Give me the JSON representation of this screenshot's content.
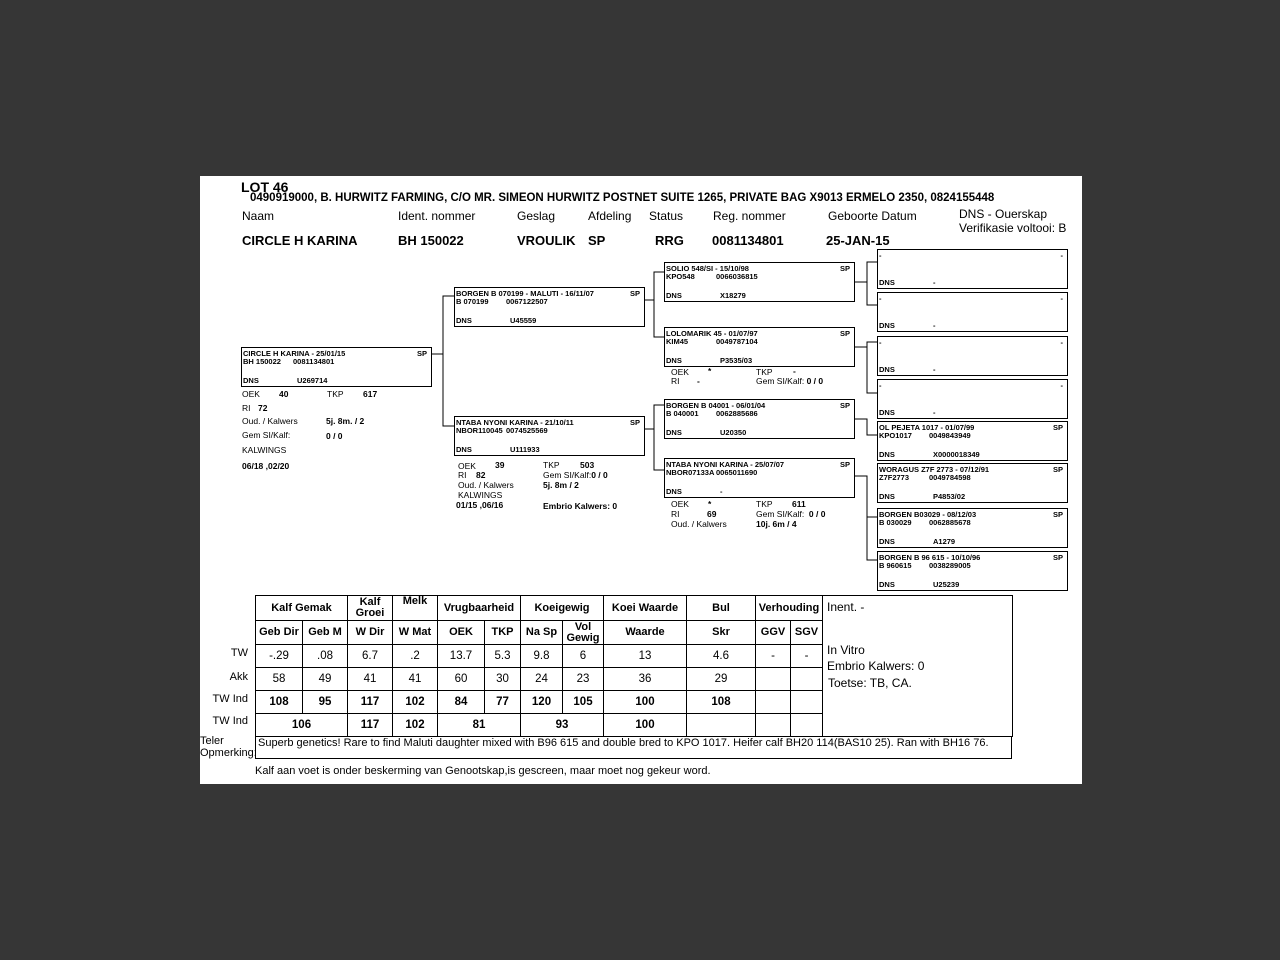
{
  "lot": "LOT 46",
  "owner": "0490919000, B. HURWITZ FARMING, C/O MR. SIMEON HURWITZ POSTNET SUITE 1265, PRIVATE BAG X9013 ERMELO 2350, 0824155448",
  "header": {
    "labels": {
      "naam": "Naam",
      "ident": "Ident. nommer",
      "geslag": "Geslag",
      "afdeling": "Afdeling",
      "status": "Status",
      "reg": "Reg. nommer",
      "geboorte": "Geboorte Datum",
      "dns": "DNS - Ouerskap",
      "verifikasie": "Verifikasie voltooi:"
    },
    "values": {
      "naam": "CIRCLE H KARINA",
      "ident": "BH  150022",
      "geslag": "VROULIK",
      "afdeling": "SP",
      "status": "RRG",
      "reg": "0081134801",
      "geboorte": "25-JAN-15",
      "verifikasie": "B"
    }
  },
  "pedigree": {
    "subject": {
      "title": "CIRCLE H KARINA - 25/01/15",
      "sp": "SP",
      "id": "BH  150022",
      "reg": "0081134801",
      "dns": "DNS",
      "dns_val": "U269714",
      "stats": {
        "oek_l": "OEK",
        "oek": "40",
        "tkp_l": "TKP",
        "tkp": "617",
        "ri_l": "RI",
        "ri": "72",
        "oud_l": "Oud. / Kalwers",
        "oud": "5j. 8m.  / 2",
        "gem_l": "Gem SI/Kalf:",
        "gem": "0 / 0",
        "kalwings_l": "KALWINGS",
        "kalwings": "06/18 ,02/20"
      }
    },
    "sire": {
      "title": "BORGEN B 070199 - MALUTI - 16/11/07",
      "sp": "SP",
      "id": "B  070199",
      "reg": "0067122507",
      "dns": "DNS",
      "dns_val": "U45559"
    },
    "dam": {
      "title": "NTABA NYONI KARINA - 21/10/11",
      "sp": "SP",
      "id": "NBOR110045",
      "reg": "0074525569",
      "dns": "DNS",
      "dns_val": "U111933",
      "stats": {
        "oek_l": "OEK",
        "oek": "39",
        "tkp_l": "TKP",
        "tkp": "503",
        "ri_l": "RI",
        "ri": "82",
        "gem_l": "Gem SI/Kalf:",
        "gem": "0 / 0",
        "oud_l": "Oud. / Kalwers",
        "oud": "5j. 8m  / 2",
        "kalwings_l": "KALWINGS",
        "kalwings": "01/15 ,06/16",
        "embrio": "Embrio Kalwers: 0"
      }
    },
    "gen2": [
      {
        "title": "SOLIO 548/SI - 15/10/98",
        "sp": "SP",
        "id": "KPO548",
        "reg": "0066036815",
        "dns": "DNS",
        "dns_val": "X18279"
      },
      {
        "title": "LOLOMARIK 45 - 01/07/97",
        "sp": "SP",
        "id": "KIM45",
        "reg": "0049787104",
        "dns": "DNS",
        "dns_val": "P3535/03",
        "stats": {
          "oek_l": "OEK",
          "oek": "*",
          "tkp_l": "TKP",
          "tkp": "-",
          "ri_l": "RI",
          "ri": "-",
          "gem_l": "Gem SI/Kalf:",
          "gem": "0 / 0"
        }
      },
      {
        "title": "BORGEN B 04001 - 06/01/04",
        "sp": "SP",
        "id": "B  040001",
        "reg": "0062885686",
        "dns": "DNS",
        "dns_val": "U20350"
      },
      {
        "title": "NTABA NYONI KARINA - 25/07/07",
        "sp": "SP",
        "id": "NBOR07133A",
        "reg": "0065011690",
        "dns": "DNS",
        "dns_val": "-",
        "stats": {
          "oek_l": "OEK",
          "oek": "*",
          "tkp_l": "TKP",
          "tkp": "611",
          "ri_l": "RI",
          "ri": "69",
          "gem_l": "Gem SI/Kalf:",
          "gem": "0 / 0",
          "oud_l": "Oud. / Kalwers",
          "oud": "10j. 6m  / 4"
        }
      }
    ],
    "gen3": [
      {
        "title": "-",
        "sp": "-",
        "id": "",
        "reg": "",
        "dns": "DNS",
        "dns_val": "-"
      },
      {
        "title": "-",
        "sp": "-",
        "id": "",
        "reg": "",
        "dns": "DNS",
        "dns_val": "-"
      },
      {
        "title": "-",
        "sp": "-",
        "id": "",
        "reg": "",
        "dns": "DNS",
        "dns_val": "-"
      },
      {
        "title": "-",
        "sp": "-",
        "id": "",
        "reg": "",
        "dns": "DNS",
        "dns_val": "-"
      },
      {
        "title": "OL PEJETA 1017 - 01/07/99",
        "sp": "SP",
        "id": "KPO1017",
        "reg": "0049843949",
        "dns": "DNS",
        "dns_val": "X0000018349"
      },
      {
        "title": "WORAGUS Z7F 2773 - 07/12/91",
        "sp": "SP",
        "id": "Z7F2773",
        "reg": "0049784598",
        "dns": "DNS",
        "dns_val": "P4853/02"
      },
      {
        "title": "BORGEN B03029 - 08/12/03",
        "sp": "SP",
        "id": "B  030029",
        "reg": "0062885678",
        "dns": "DNS",
        "dns_val": "A1279"
      },
      {
        "title": "BORGEN B 96 615 - 10/10/96",
        "sp": "SP",
        "id": "B  960615",
        "reg": "0038289005",
        "dns": "DNS",
        "dns_val": "U25239"
      }
    ]
  },
  "breeding_values": {
    "groups": [
      "Kalf Gemak",
      "Kalf Groei",
      "Melk",
      "Vrugbaarheid",
      "Koeigewig",
      "Koei Waarde",
      "Bul",
      "Verhouding"
    ],
    "columns": [
      "Geb Dir",
      "Geb M",
      "W Dir",
      "W Mat",
      "OEK",
      "TKP",
      "Na Sp",
      "Vol Gewig",
      "Waarde",
      "Skr",
      "GGV",
      "SGV"
    ],
    "row_labels": [
      "TW",
      "Akk",
      "TW Ind",
      "TW Ind"
    ],
    "tw": [
      "-.29",
      ".08",
      "6.7",
      ".2",
      "13.7",
      "5.3",
      "9.8",
      "6",
      "13",
      "4.6",
      "-",
      "-"
    ],
    "akk": [
      "58",
      "49",
      "41",
      "41",
      "60",
      "30",
      "24",
      "23",
      "36",
      "29",
      "",
      ""
    ],
    "tw_ind": [
      "108",
      "95",
      "117",
      "102",
      "84",
      "77",
      "120",
      "105",
      "100",
      "108",
      "",
      ""
    ],
    "tw_ind_group": [
      "106",
      "117",
      "102",
      "81",
      "93",
      "100",
      "",
      "",
      ""
    ]
  },
  "side": {
    "inent": "Inent. -",
    "in_vitro": "In Vitro",
    "embrio": "Embrio Kalwers:   0",
    "toetse": "Toetse: TB, CA."
  },
  "remarks": {
    "label1": "Teler",
    "label2": "Opmerking:",
    "text": "Superb genetics! Rare to find Maluti daughter  mixed with B96 615 and double bred to KPO 1017. Heifer calf BH20 114(BAS10 25). Ran with BH16 76.",
    "note": "Kalf aan voet  is onder beskerming van Genootskap,is gescreen, maar moet nog gekeur word."
  }
}
